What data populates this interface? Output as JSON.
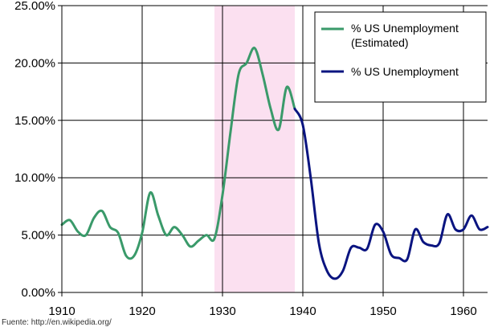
{
  "chart_data": {
    "type": "line",
    "title": "",
    "xlabel": "",
    "ylabel": "",
    "xlim": [
      1910,
      1963
    ],
    "ylim": [
      0,
      25
    ],
    "x_ticks": [
      1910,
      1920,
      1930,
      1940,
      1950,
      1960
    ],
    "x_tick_labels": [
      "1910",
      "1920",
      "1930",
      "1940",
      "1950",
      "1960"
    ],
    "y_ticks": [
      0,
      5,
      10,
      15,
      20,
      25
    ],
    "y_tick_labels": [
      "0.00%",
      "5.00%",
      "10.00%",
      "15.00%",
      "20.00%",
      "25.00%"
    ],
    "grid": true,
    "legend_position": "top-right",
    "shaded_region": {
      "x_start": 1929,
      "x_end": 1939,
      "color": "#fbe0f0"
    },
    "source": "Fuente: http://en.wikipedia.org/",
    "series": [
      {
        "name": "% US Unemployment (Estimated)",
        "legend_lines": [
          "% US Unemployment",
          "(Estimated)"
        ],
        "color": "#3a9a6a",
        "x": [
          1910,
          1911,
          1912,
          1913,
          1914,
          1915,
          1916,
          1917,
          1918,
          1919,
          1920,
          1921,
          1922,
          1923,
          1924,
          1925,
          1926,
          1927,
          1928,
          1929,
          1930,
          1931,
          1932,
          1933,
          1934,
          1935,
          1936,
          1937,
          1938,
          1939
        ],
        "values": [
          5.9,
          6.3,
          5.3,
          5.0,
          6.5,
          7.1,
          5.7,
          5.2,
          3.2,
          3.2,
          5.2,
          8.7,
          6.7,
          5.0,
          5.7,
          5.0,
          4.0,
          4.5,
          5.0,
          4.7,
          8.5,
          14.0,
          19.0,
          20.0,
          21.3,
          19.0,
          16.0,
          14.2,
          17.9,
          16.0
        ]
      },
      {
        "name": "% US Unemployment",
        "legend_lines": [
          "% US Unemployment"
        ],
        "color": "#0a1480",
        "x": [
          1939,
          1940,
          1941,
          1942,
          1943,
          1944,
          1945,
          1946,
          1947,
          1948,
          1949,
          1950,
          1951,
          1952,
          1953,
          1954,
          1955,
          1956,
          1957,
          1958,
          1959,
          1960,
          1961,
          1962,
          1963
        ],
        "values": [
          16.0,
          14.6,
          9.9,
          4.3,
          1.9,
          1.2,
          1.9,
          3.9,
          3.9,
          3.8,
          5.9,
          5.3,
          3.3,
          3.0,
          2.9,
          5.5,
          4.4,
          4.1,
          4.3,
          6.8,
          5.5,
          5.5,
          6.7,
          5.5,
          5.7
        ]
      }
    ]
  }
}
